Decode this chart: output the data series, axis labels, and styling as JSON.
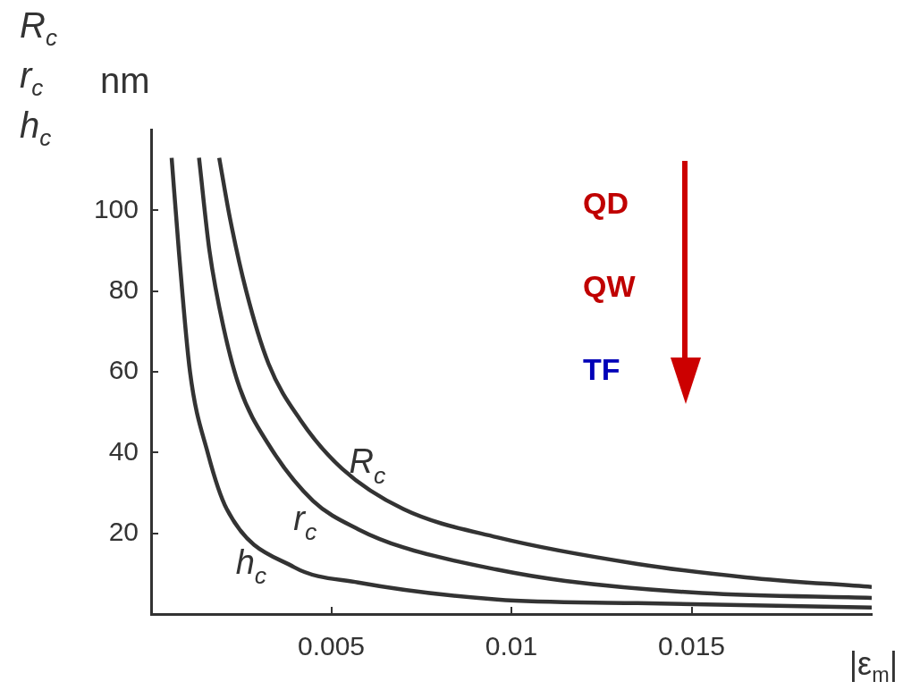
{
  "chart_data": {
    "type": "line",
    "ylabel": "R$_{c}$ r$_{c}$ h$_{c}$ nm",
    "xlabel": "|ε$_{m}$|",
    "xlim": [
      0,
      0.02
    ],
    "xticks": [
      0.005,
      0.01,
      0.015
    ],
    "ylim": [
      0,
      120
    ],
    "yticks": [
      20,
      40,
      60,
      80,
      100
    ],
    "grid": false,
    "legend": false,
    "series": [
      {
        "name": "R$_{c}$",
        "color": "#333333",
        "x": [
          0.00189,
          0.00219,
          0.00264,
          0.00326,
          0.00415,
          0.0053,
          0.007,
          0.0096,
          0.0135,
          0.0165,
          0.02
        ],
        "values": [
          113,
          98,
          80,
          62,
          48,
          36,
          26,
          19,
          12.4,
          9.1,
          6.7
        ]
      },
      {
        "name": "r$_{c}$",
        "color": "#333333",
        "x": [
          0.00133,
          0.00162,
          0.00201,
          0.00246,
          0.00326,
          0.0045,
          0.00575,
          0.007,
          0.0096,
          0.0115,
          0.0153,
          0.02
        ],
        "values": [
          113,
          90,
          71,
          56,
          42,
          28,
          21,
          16.5,
          11,
          8.2,
          5.2,
          4
        ]
      },
      {
        "name": "h$_{c}$",
        "color": "#333333",
        "x": [
          0.00057,
          0.00077,
          0.00108,
          0.00157,
          0.0021,
          0.00397,
          0.00575,
          0.0096,
          0.0135,
          0.02
        ],
        "values": [
          113,
          90,
          60,
          40,
          26,
          11.6,
          7.8,
          3.6,
          2.7,
          1.6
        ]
      }
    ],
    "annotations": [
      "QD",
      "QW",
      "TF"
    ]
  }
}
